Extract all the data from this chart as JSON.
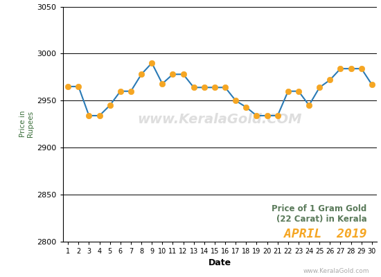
{
  "dates": [
    1,
    2,
    3,
    4,
    5,
    6,
    7,
    8,
    9,
    10,
    11,
    12,
    13,
    14,
    15,
    16,
    17,
    18,
    19,
    20,
    21,
    22,
    23,
    24,
    25,
    26,
    27,
    28,
    29,
    30
  ],
  "prices": [
    2965,
    2965,
    2934,
    2934,
    2945,
    2960,
    2960,
    2978,
    2990,
    2968,
    2978,
    2978,
    2964,
    2964,
    2964,
    2964,
    2950,
    2943,
    2934,
    2934,
    2934,
    2960,
    2960,
    2945,
    2964,
    2972,
    2984,
    2984,
    2984,
    2967
  ],
  "line_color": "#2a7ab5",
  "marker_color": "#f5a623",
  "marker_edge_color": "#f5a623",
  "xlabel": "Date",
  "ylabel": "Price in\nRupees",
  "annotation_line1": "Price of 1 Gram Gold",
  "annotation_line2": "(22 Carat) in Kerala",
  "annotation_line3": "APRIL  2019",
  "annotation_color_12": "#5a7a5a",
  "annotation_color_3": "#f5a623",
  "watermark_text": "www.KeralaGold.COM",
  "watermark_color": "#d0d0d0",
  "website_text": "www.KeralaGold.com",
  "website_color": "#aaaaaa",
  "ylim_min": 2800,
  "ylim_max": 3050,
  "yticks": [
    2800,
    2850,
    2900,
    2950,
    3000,
    3050
  ],
  "background_color": "#ffffff",
  "grid_color": "#000000",
  "xlabel_color": "#000000",
  "ylabel_color": "#3a6e3a",
  "line_width": 1.5,
  "marker_size": 6
}
